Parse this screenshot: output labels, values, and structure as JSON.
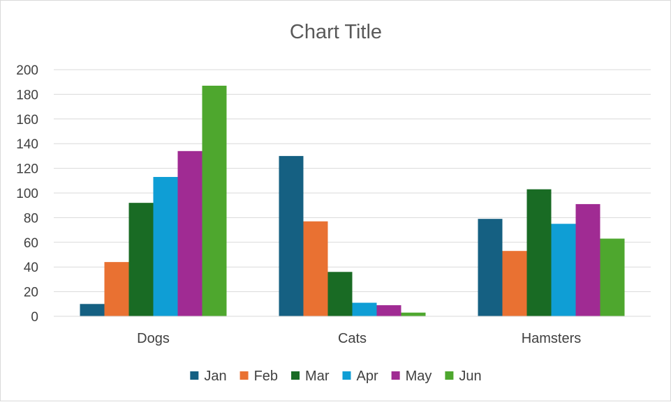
{
  "chart_data": {
    "type": "bar",
    "title": "Chart Title",
    "xlabel": "",
    "ylabel": "",
    "categories": [
      "Dogs",
      "Cats",
      "Hamsters"
    ],
    "series": [
      {
        "name": "Jan",
        "color": "#156082",
        "values": [
          10,
          130,
          79
        ]
      },
      {
        "name": "Feb",
        "color": "#E97132",
        "values": [
          44,
          77,
          53
        ]
      },
      {
        "name": "Mar",
        "color": "#196B24",
        "values": [
          92,
          36,
          103
        ]
      },
      {
        "name": "Apr",
        "color": "#0F9ED5",
        "values": [
          113,
          11,
          75
        ]
      },
      {
        "name": "May",
        "color": "#A02B93",
        "values": [
          134,
          9,
          91
        ]
      },
      {
        "name": "Jun",
        "color": "#4EA72E",
        "values": [
          187,
          3,
          63
        ]
      }
    ],
    "ylim": [
      0,
      200
    ],
    "yticks": [
      0,
      20,
      40,
      60,
      80,
      100,
      120,
      140,
      160,
      180,
      200
    ],
    "grid": true,
    "legend_position": "bottom"
  }
}
